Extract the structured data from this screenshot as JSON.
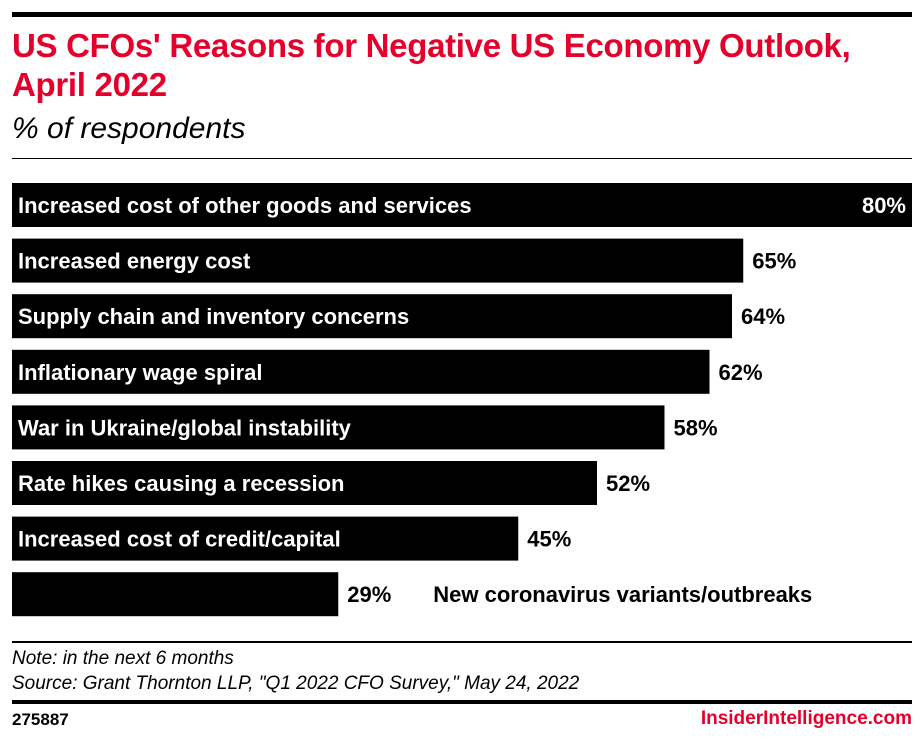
{
  "chart_data": {
    "type": "bar",
    "orientation": "horizontal",
    "title": "US CFOs' Reasons for Negative US Economy Outlook, April 2022",
    "subtitle": "% of respondents",
    "categories": [
      "Increased cost of other goods and services",
      "Increased energy cost",
      "Supply chain and inventory concerns",
      "Inflationary wage spiral",
      "War in Ukraine/global instability",
      "Rate hikes causing a recession",
      "Increased cost of credit/capital",
      "New coronavirus variants/outbreaks"
    ],
    "values": [
      80,
      65,
      64,
      62,
      58,
      52,
      45,
      29
    ],
    "value_labels": [
      "80%",
      "65%",
      "64%",
      "62%",
      "58%",
      "52%",
      "45%",
      "29%"
    ],
    "xlim": [
      0,
      80
    ],
    "grid": false,
    "bar_color": "#000000"
  },
  "footer": {
    "note": "Note: in the next 6 months",
    "source": "Source: Grant Thornton LLP, \"Q1 2022 CFO Survey,\" May 24, 2022",
    "chart_id": "275887",
    "brand": "InsiderIntelligence.com"
  },
  "colors": {
    "accent": "#e4002b"
  }
}
